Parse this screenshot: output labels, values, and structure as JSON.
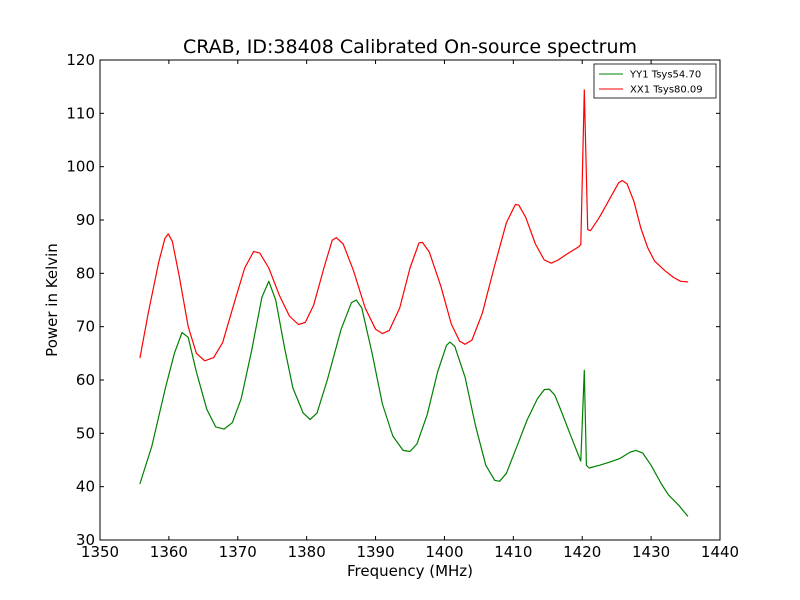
{
  "chart_data": {
    "type": "line",
    "title": "CRAB, ID:38408 Calibrated On-source spectrum",
    "xlabel": "Frequency (MHz)",
    "ylabel": "Power in Kelvin",
    "xlim": [
      1350,
      1440
    ],
    "ylim": [
      30,
      120
    ],
    "xticks": [
      1350,
      1360,
      1370,
      1380,
      1390,
      1400,
      1410,
      1420,
      1430,
      1440
    ],
    "yticks": [
      30,
      40,
      50,
      60,
      70,
      80,
      90,
      100,
      110,
      120
    ],
    "grid": false,
    "legend_position": "top-right",
    "series": [
      {
        "name": "YY1 Tsys54.70",
        "color": "#008000",
        "points": [
          [
            1355.8,
            40.6
          ],
          [
            1357.5,
            47.5
          ],
          [
            1359.5,
            58.5
          ],
          [
            1360.8,
            65.0
          ],
          [
            1361.9,
            68.9
          ],
          [
            1362.8,
            68.0
          ],
          [
            1364.0,
            61.5
          ],
          [
            1365.5,
            54.5
          ],
          [
            1366.8,
            51.2
          ],
          [
            1368.0,
            50.8
          ],
          [
            1369.2,
            52.0
          ],
          [
            1370.5,
            56.5
          ],
          [
            1372.0,
            65.5
          ],
          [
            1373.5,
            75.5
          ],
          [
            1374.5,
            78.5
          ],
          [
            1375.5,
            75.0
          ],
          [
            1376.8,
            66.0
          ],
          [
            1378.0,
            58.5
          ],
          [
            1379.5,
            53.8
          ],
          [
            1380.5,
            52.6
          ],
          [
            1381.5,
            53.8
          ],
          [
            1383.0,
            60.0
          ],
          [
            1385.0,
            69.5
          ],
          [
            1386.5,
            74.5
          ],
          [
            1387.2,
            75.0
          ],
          [
            1388.0,
            73.5
          ],
          [
            1389.5,
            65.0
          ],
          [
            1391.0,
            55.5
          ],
          [
            1392.5,
            49.5
          ],
          [
            1394.0,
            46.8
          ],
          [
            1395.0,
            46.6
          ],
          [
            1396.0,
            48.0
          ],
          [
            1397.5,
            53.5
          ],
          [
            1399.0,
            61.5
          ],
          [
            1400.3,
            66.5
          ],
          [
            1400.8,
            67.1
          ],
          [
            1401.5,
            66.3
          ],
          [
            1403.0,
            60.5
          ],
          [
            1404.5,
            51.5
          ],
          [
            1406.0,
            44.0
          ],
          [
            1407.3,
            41.2
          ],
          [
            1408.0,
            41.0
          ],
          [
            1409.0,
            42.5
          ],
          [
            1410.5,
            47.5
          ],
          [
            1412.0,
            52.5
          ],
          [
            1413.5,
            56.5
          ],
          [
            1414.5,
            58.2
          ],
          [
            1415.2,
            58.3
          ],
          [
            1416.0,
            57.2
          ],
          [
            1417.0,
            54.0
          ],
          [
            1418.5,
            49.0
          ],
          [
            1419.8,
            44.8
          ],
          [
            1420.3,
            61.8
          ],
          [
            1420.6,
            44.0
          ],
          [
            1421.0,
            43.5
          ],
          [
            1422.5,
            44.0
          ],
          [
            1424.0,
            44.6
          ],
          [
            1425.5,
            45.3
          ],
          [
            1427.0,
            46.5
          ],
          [
            1427.8,
            46.8
          ],
          [
            1428.8,
            46.3
          ],
          [
            1430.0,
            44.0
          ],
          [
            1431.5,
            40.5
          ],
          [
            1432.5,
            38.5
          ],
          [
            1434.0,
            36.5
          ],
          [
            1435.3,
            34.5
          ]
        ]
      },
      {
        "name": "XX1 Tsys80.09",
        "color": "#ff0000",
        "points": [
          [
            1355.8,
            64.2
          ],
          [
            1357.0,
            72.5
          ],
          [
            1358.5,
            82.0
          ],
          [
            1359.4,
            86.5
          ],
          [
            1359.9,
            87.4
          ],
          [
            1360.5,
            86.0
          ],
          [
            1361.5,
            79.5
          ],
          [
            1362.8,
            70.0
          ],
          [
            1364.0,
            65.0
          ],
          [
            1365.2,
            63.6
          ],
          [
            1366.5,
            64.2
          ],
          [
            1367.8,
            67.0
          ],
          [
            1369.5,
            74.5
          ],
          [
            1371.0,
            81.0
          ],
          [
            1372.3,
            84.1
          ],
          [
            1373.2,
            83.8
          ],
          [
            1374.5,
            81.0
          ],
          [
            1376.0,
            76.0
          ],
          [
            1377.5,
            72.0
          ],
          [
            1378.8,
            70.4
          ],
          [
            1379.8,
            70.8
          ],
          [
            1381.0,
            74.0
          ],
          [
            1382.5,
            81.0
          ],
          [
            1383.7,
            86.2
          ],
          [
            1384.3,
            86.7
          ],
          [
            1385.3,
            85.5
          ],
          [
            1386.8,
            80.5
          ],
          [
            1388.5,
            73.5
          ],
          [
            1390.0,
            69.5
          ],
          [
            1391.0,
            68.7
          ],
          [
            1392.0,
            69.3
          ],
          [
            1393.5,
            73.5
          ],
          [
            1395.0,
            81.0
          ],
          [
            1396.3,
            85.7
          ],
          [
            1396.8,
            85.8
          ],
          [
            1397.8,
            84.0
          ],
          [
            1399.5,
            77.5
          ],
          [
            1401.0,
            70.5
          ],
          [
            1402.2,
            67.3
          ],
          [
            1403.0,
            66.7
          ],
          [
            1404.0,
            67.5
          ],
          [
            1405.5,
            72.5
          ],
          [
            1407.2,
            81.0
          ],
          [
            1409.0,
            89.5
          ],
          [
            1410.3,
            92.9
          ],
          [
            1410.8,
            92.8
          ],
          [
            1411.8,
            90.5
          ],
          [
            1413.2,
            85.5
          ],
          [
            1414.5,
            82.5
          ],
          [
            1415.5,
            81.9
          ],
          [
            1416.5,
            82.5
          ],
          [
            1418.0,
            83.8
          ],
          [
            1419.5,
            85.0
          ],
          [
            1419.8,
            85.4
          ],
          [
            1420.3,
            114.4
          ],
          [
            1420.8,
            88.2
          ],
          [
            1421.2,
            88.0
          ],
          [
            1422.5,
            90.5
          ],
          [
            1424.0,
            94.0
          ],
          [
            1425.3,
            97.0
          ],
          [
            1425.8,
            97.4
          ],
          [
            1426.5,
            96.8
          ],
          [
            1427.5,
            93.5
          ],
          [
            1428.5,
            88.5
          ],
          [
            1429.5,
            84.8
          ],
          [
            1430.5,
            82.3
          ],
          [
            1432.0,
            80.5
          ],
          [
            1433.3,
            79.2
          ],
          [
            1434.3,
            78.5
          ],
          [
            1435.3,
            78.4
          ]
        ]
      }
    ]
  }
}
